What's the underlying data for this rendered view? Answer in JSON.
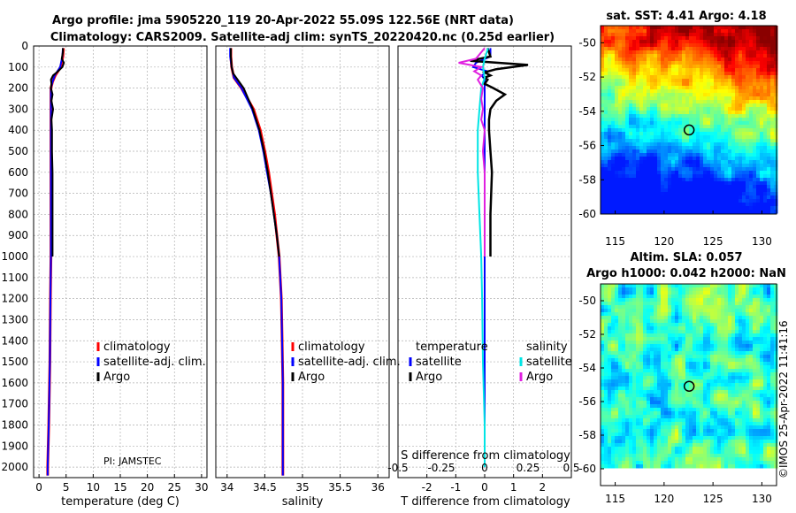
{
  "header": {
    "title_line1": "Argo profile: jma 5905220_119 20-Apr-2022 55.09S 122.56E (NRT data)",
    "title_line2": "Climatology: CARS2009. Satellite-adj clim: synTS_20220420.nc (0.25d earlier)"
  },
  "colors": {
    "climatology": "#ff0000",
    "satellite_adj": "#0000ff",
    "argo": "#000000",
    "sal_satellite": "#00e5e5",
    "sal_argo": "#e020e0",
    "grid": "#b0b0b0"
  },
  "chart_data": [
    {
      "type": "line",
      "name": "temperature-profile",
      "xlabel": "temperature (deg C)",
      "ylabel": "",
      "xlim": [
        -1,
        31
      ],
      "ylim": [
        2050,
        0
      ],
      "xticks": [
        "0",
        "5",
        "10",
        "15",
        "20",
        "25",
        "30"
      ],
      "xtick_values": [
        0,
        5,
        10,
        15,
        20,
        25,
        30
      ],
      "yticks": [
        "0",
        "100",
        "200",
        "300",
        "400",
        "500",
        "600",
        "700",
        "800",
        "900",
        "1000",
        "1100",
        "1200",
        "1300",
        "1400",
        "1500",
        "1600",
        "1700",
        "1800",
        "1900",
        "2000"
      ],
      "ytick_values": [
        0,
        100,
        200,
        300,
        400,
        500,
        600,
        700,
        800,
        900,
        1000,
        1100,
        1200,
        1300,
        1400,
        1500,
        1600,
        1700,
        1800,
        1900,
        2000
      ],
      "legend": [
        "climatology",
        "satellite-adj. clim.",
        "Argo"
      ],
      "annotation": "PI: JAMSTEC",
      "series": [
        {
          "name": "climatology",
          "depth": [
            10,
            50,
            100,
            140,
            170,
            200,
            300,
            400,
            600,
            800,
            1000,
            1200,
            1500,
            1800,
            2000,
            2040
          ],
          "values": [
            4.5,
            4.4,
            4.0,
            3.0,
            2.5,
            2.2,
            2.2,
            2.2,
            2.2,
            2.2,
            2.2,
            2.1,
            2.0,
            1.8,
            1.6,
            1.6
          ]
        },
        {
          "name": "satellite-adj. clim.",
          "depth": [
            10,
            50,
            100,
            140,
            170,
            200,
            300,
            400,
            600,
            800,
            1000,
            1200,
            1500,
            1800,
            2000,
            2040
          ],
          "values": [
            4.4,
            4.3,
            3.9,
            2.9,
            2.5,
            2.2,
            2.2,
            2.2,
            2.2,
            2.2,
            2.2,
            2.1,
            2.0,
            1.8,
            1.6,
            1.6
          ]
        },
        {
          "name": "Argo",
          "depth": [
            10,
            30,
            60,
            80,
            100,
            120,
            140,
            160,
            180,
            200,
            230,
            260,
            300,
            350,
            400,
            500,
            600,
            800,
            1000
          ],
          "values": [
            4.4,
            4.4,
            4.2,
            4.6,
            4.3,
            3.5,
            2.6,
            2.2,
            2.3,
            2.2,
            2.5,
            2.3,
            2.6,
            2.3,
            2.4,
            2.4,
            2.5,
            2.5,
            2.5
          ]
        }
      ]
    },
    {
      "type": "line",
      "name": "salinity-profile",
      "xlabel": "salinity",
      "xlim": [
        33.85,
        36.15
      ],
      "ylim": [
        2050,
        0
      ],
      "xticks": [
        "34",
        "34.5",
        "35",
        "35.5",
        "36"
      ],
      "xtick_values": [
        34,
        34.5,
        35,
        35.5,
        36
      ],
      "legend": [
        "climatology",
        "satellite-adj. clim.",
        "Argo"
      ],
      "series": [
        {
          "name": "climatology",
          "depth": [
            10,
            50,
            100,
            150,
            200,
            300,
            400,
            500,
            600,
            700,
            800,
            900,
            1000,
            1200,
            1400,
            1600,
            1800,
            2000,
            2040
          ],
          "values": [
            34.05,
            34.05,
            34.06,
            34.09,
            34.19,
            34.35,
            34.44,
            34.5,
            34.55,
            34.59,
            34.63,
            34.66,
            34.69,
            34.72,
            34.73,
            34.74,
            34.74,
            34.74,
            34.74
          ]
        },
        {
          "name": "satellite-adj. clim.",
          "depth": [
            10,
            50,
            100,
            150,
            200,
            300,
            400,
            500,
            600,
            700,
            800,
            900,
            1000,
            1200,
            1400,
            1600,
            1800,
            2000,
            2040
          ],
          "values": [
            34.04,
            34.04,
            34.06,
            34.09,
            34.19,
            34.33,
            34.42,
            34.48,
            34.53,
            34.58,
            34.62,
            34.66,
            34.69,
            34.72,
            34.73,
            34.74,
            34.74,
            34.74,
            34.74
          ]
        },
        {
          "name": "Argo",
          "depth": [
            10,
            50,
            100,
            130,
            160,
            200,
            250,
            300,
            400,
            500,
            600,
            700,
            800,
            900,
            1000
          ],
          "values": [
            34.05,
            34.05,
            34.06,
            34.08,
            34.14,
            34.22,
            34.28,
            34.34,
            34.43,
            34.49,
            34.54,
            34.58,
            34.62,
            34.66,
            34.69
          ]
        }
      ]
    },
    {
      "type": "line",
      "name": "difference-profile",
      "xlabel": "T difference from climatology",
      "xlabel2": "S difference from climatology",
      "xlim": [
        -3,
        3
      ],
      "ylim": [
        2050,
        0
      ],
      "xticks": [
        "-2",
        "-1",
        "0",
        "1",
        "2"
      ],
      "xtick_values": [
        -2,
        -1,
        0,
        1,
        2
      ],
      "s_ticks": [
        "-0.5",
        "-0.25",
        "0",
        "0.25",
        "0.5"
      ],
      "s_tick_values": [
        -0.5,
        -0.25,
        0,
        0.25,
        0.5
      ],
      "legend_temperature_title": "temperature",
      "legend_salinity_title": "salinity",
      "legend_temperature": [
        "satellite",
        "Argo"
      ],
      "legend_salinity": [
        "satellite",
        "Argo"
      ],
      "series": [
        {
          "name": "T satellite",
          "depth": [
            10,
            50,
            80,
            100,
            120,
            140,
            160,
            200,
            300,
            400,
            600,
            800,
            1000,
            1500,
            2000
          ],
          "values": [
            0.2,
            0.2,
            -0.3,
            -0.4,
            0.1,
            -0.1,
            0.0,
            0.0,
            0.0,
            0.0,
            0.0,
            0.0,
            0.0,
            0.0,
            0.0
          ]
        },
        {
          "name": "T Argo",
          "depth": [
            10,
            50,
            70,
            90,
            110,
            125,
            140,
            150,
            160,
            180,
            200,
            230,
            260,
            300,
            350,
            400,
            500,
            600,
            800,
            1000
          ],
          "values": [
            0.1,
            0.2,
            -0.5,
            1.5,
            0.4,
            0.0,
            0.2,
            0.0,
            0.1,
            0.0,
            0.3,
            0.7,
            0.4,
            0.2,
            0.15,
            0.15,
            0.2,
            0.25,
            0.2,
            0.2
          ]
        },
        {
          "name": "S satellite",
          "depth": [
            10,
            60,
            100,
            150,
            200,
            300,
            400,
            600,
            800,
            1000,
            1200,
            1500,
            1800,
            2000
          ],
          "values": [
            0.02,
            0.0,
            -0.01,
            0.0,
            -0.02,
            -0.03,
            -0.04,
            -0.04,
            -0.03,
            -0.02,
            -0.015,
            -0.01,
            0.0,
            0.0
          ]
        },
        {
          "name": "S Argo",
          "depth": [
            10,
            60,
            80,
            100,
            120,
            140,
            160,
            200,
            250,
            300,
            350,
            400,
            500,
            600,
            800,
            1000
          ],
          "values": [
            0.0,
            -0.05,
            -0.15,
            -0.02,
            -0.06,
            -0.02,
            -0.04,
            -0.01,
            -0.02,
            -0.01,
            -0.02,
            0.0,
            -0.01,
            0.0,
            0.0,
            0.0
          ]
        }
      ]
    },
    {
      "type": "heatmap",
      "name": "sst-map",
      "title": "sat. SST: 4.41 Argo: 4.18",
      "xlim": [
        113.5,
        131.5
      ],
      "ylim": [
        -60,
        -49
      ],
      "xticks": [
        "115",
        "120",
        "125",
        "130"
      ],
      "xtick_values": [
        115,
        120,
        125,
        130
      ],
      "yticks": [
        "-50",
        "-52",
        "-54",
        "-56",
        "-58",
        "-60"
      ],
      "ytick_values": [
        -50,
        -52,
        -54,
        -56,
        -58,
        -60
      ],
      "float_position": [
        122.56,
        -55.09
      ]
    },
    {
      "type": "heatmap",
      "name": "sla-map",
      "title1": "Altim. SLA: 0.057",
      "title2": "Argo h1000: 0.042 h2000: NaN",
      "xlim": [
        113.5,
        131.5
      ],
      "ylim": [
        -61,
        -49
      ],
      "xticks": [
        "115",
        "120",
        "125",
        "130"
      ],
      "xtick_values": [
        115,
        120,
        125,
        130
      ],
      "yticks": [
        "-50",
        "-52",
        "-54",
        "-56",
        "-58",
        "-60"
      ],
      "ytick_values": [
        -50,
        -52,
        -54,
        -56,
        -58,
        -60
      ],
      "float_position": [
        122.56,
        -55.09
      ]
    }
  ],
  "footer": {
    "stamp": "©IMOS 25-Apr-2022 11:41:16"
  }
}
